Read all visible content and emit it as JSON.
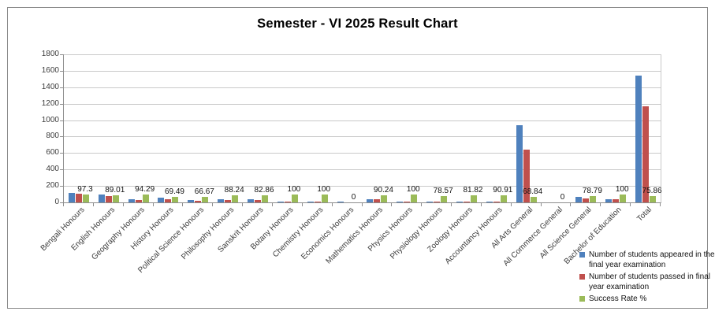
{
  "colors": {
    "appeared_series": "#4F81BD",
    "passed_series": "#C0504D",
    "success_rate_series": "#9BBB59",
    "gridline": "#C9C9C9",
    "axis": "#8E8E8E",
    "frame_border": "#8A8A8A",
    "background": "#FFFFFF",
    "text": "#000000"
  },
  "chart_data": {
    "type": "bar",
    "title": "Semester - VI 2025 Result Chart",
    "categories": [
      "Bengali Honours",
      "English Honours",
      "Geography Honours",
      "History Honours",
      "Political Science Honours",
      "Philosophy Honours",
      "Sanskrit Honours",
      "Botany Honours",
      "Chemistry Honours",
      "Economics Honours",
      "Mathematics Honours",
      "Physics Honours",
      "Physiology Honours",
      "Zoology Honours",
      "Accountancy Honours",
      "All Arts General",
      "All Commerce General",
      "All Science General",
      "Bachelor of Education",
      "Total"
    ],
    "series": [
      {
        "name": "Number of students appeared in the final year examination",
        "color": "#4F81BD",
        "values": [
          111,
          91,
          35,
          59,
          33,
          34,
          35,
          5,
          10,
          1,
          41,
          8,
          14,
          11,
          11,
          937,
          0,
          66,
          35,
          1537
        ]
      },
      {
        "name": "Number of students passed in final year examination",
        "color": "#C0504D",
        "values": [
          108,
          81,
          33,
          41,
          22,
          30,
          29,
          5,
          10,
          0,
          37,
          8,
          11,
          9,
          10,
          645,
          0,
          52,
          35,
          1166
        ]
      },
      {
        "name": "Success Rate %",
        "color": "#9BBB59",
        "values": [
          97.3,
          89.01,
          94.29,
          69.49,
          66.67,
          88.24,
          82.86,
          100,
          100,
          0,
          90.24,
          100,
          78.57,
          81.82,
          90.91,
          68.84,
          0,
          78.79,
          100,
          75.86
        ]
      }
    ],
    "data_labels": {
      "series": "Success Rate %",
      "values": [
        "97.3",
        "89.01",
        "94.29",
        "69.49",
        "66.67",
        "88.24",
        "82.86",
        "100",
        "100",
        "0",
        "90.24",
        "100",
        "78.57",
        "81.82",
        "90.91",
        "68.84",
        "0",
        "78.79",
        "100",
        "75.86"
      ]
    },
    "y_axis": {
      "min": 0,
      "max": 1800,
      "tick_step": 200,
      "ticks": [
        0,
        200,
        400,
        600,
        800,
        1000,
        1200,
        1400,
        1600,
        1800
      ]
    },
    "x_axis": {
      "label_rotation_deg": -45
    },
    "grid": true,
    "legend_position": "bottom-right"
  }
}
